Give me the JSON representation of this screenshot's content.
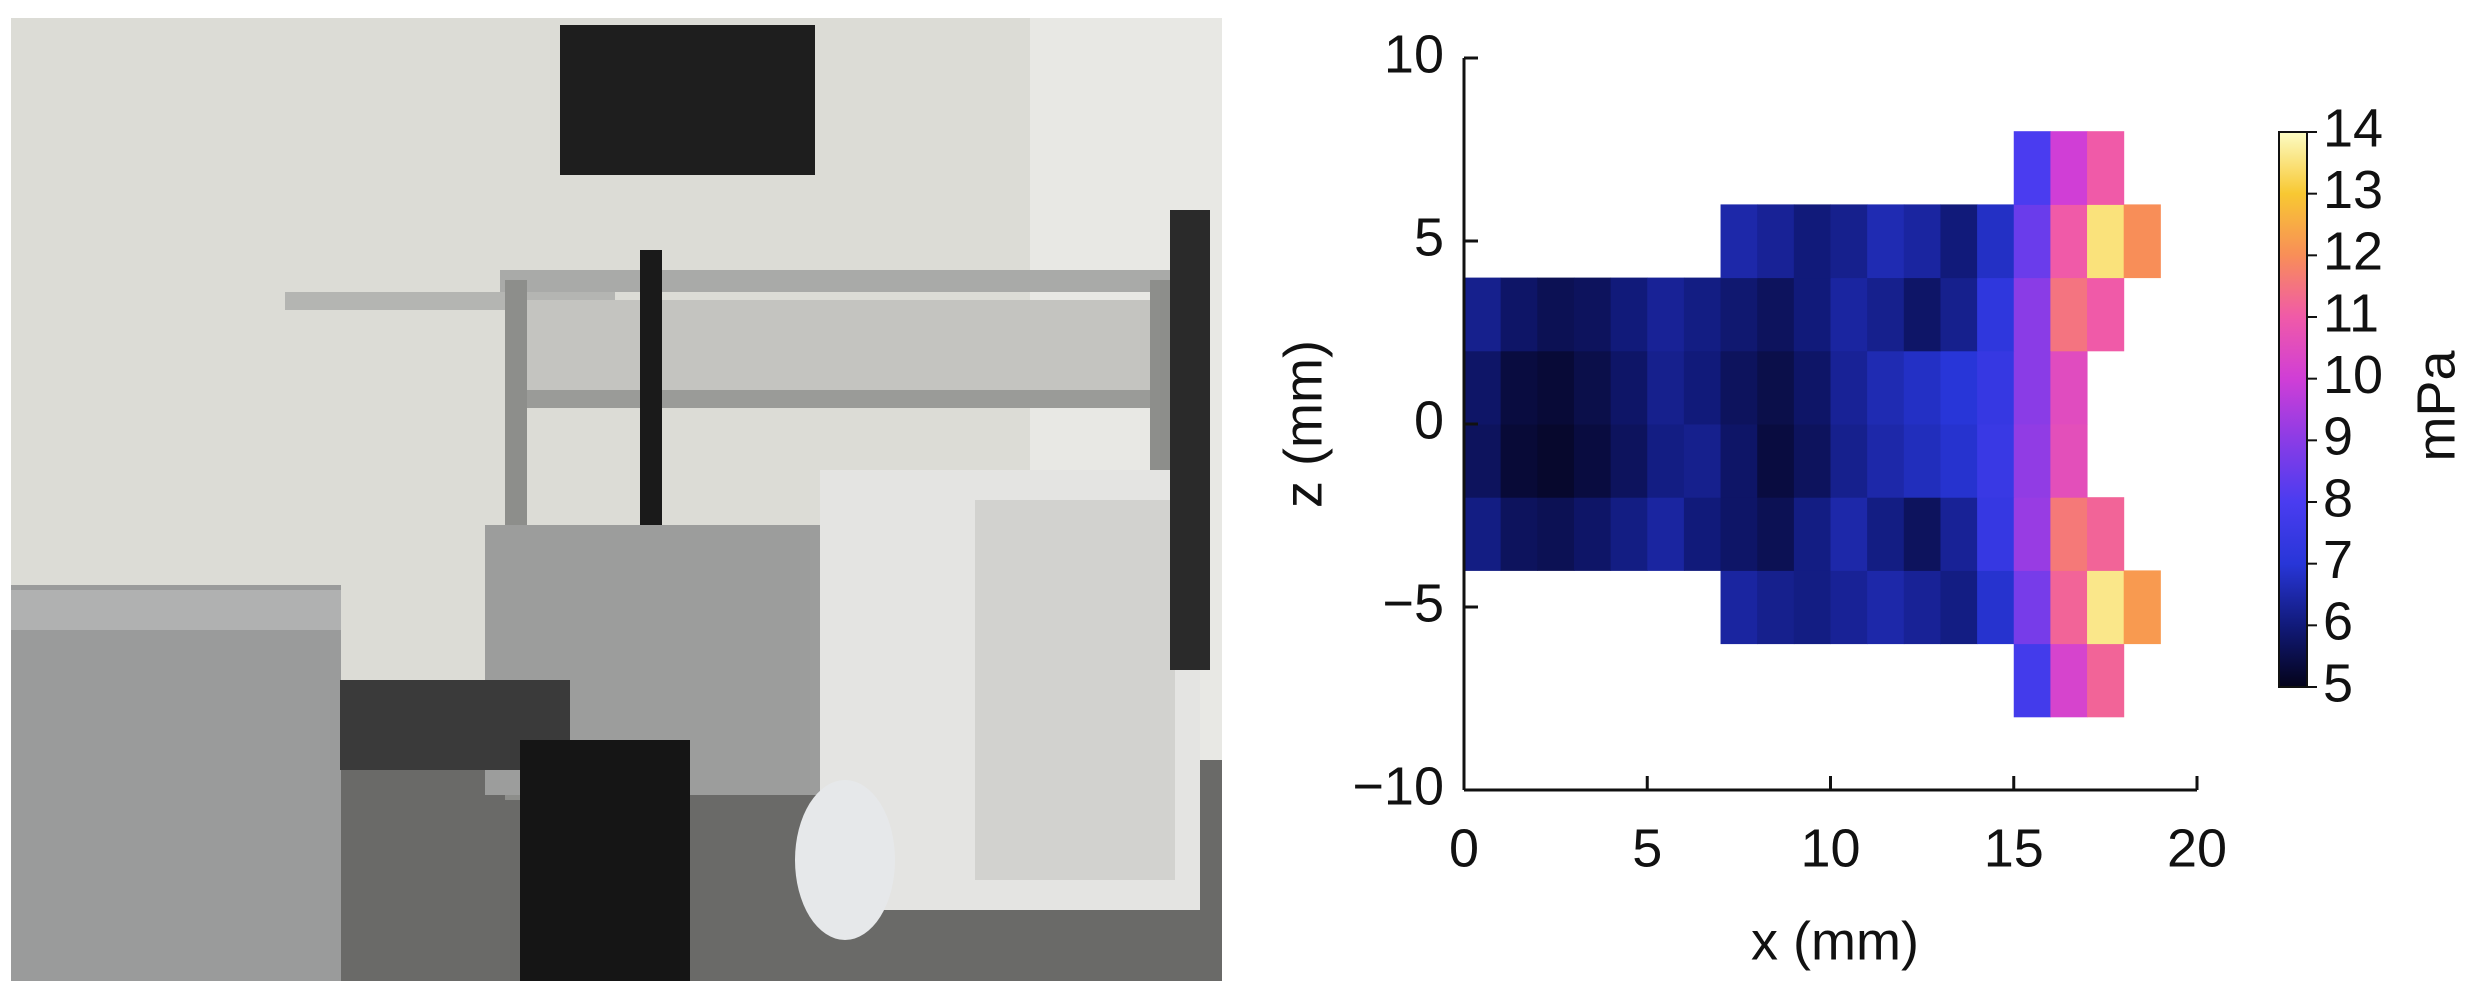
{
  "chart_data": {
    "type": "heatmap",
    "x_label": "x (mm)",
    "y_label": "z (mm)",
    "xlim": [
      0,
      20
    ],
    "ylim": [
      -10,
      10
    ],
    "xticks": [
      0,
      5,
      10,
      15,
      20
    ],
    "yticks": [
      {
        "value": -10,
        "label": "−10"
      },
      {
        "value": -5,
        "label": "−5"
      },
      0,
      5,
      10
    ],
    "x_edges": [
      0,
      1,
      2,
      3,
      4,
      5,
      6,
      7,
      8,
      9,
      10,
      11,
      12,
      13,
      14,
      15,
      16,
      17,
      18,
      19
    ],
    "z_edges": [
      -8,
      -6,
      -4,
      -2,
      0,
      2,
      4,
      6,
      8
    ],
    "values": [
      [
        null,
        null,
        null,
        null,
        null,
        null,
        null,
        null,
        null,
        null,
        null,
        null,
        null,
        null,
        null,
        7.8,
        10.2,
        11.2,
        null
      ],
      [
        null,
        null,
        null,
        null,
        null,
        null,
        null,
        6.4,
        6.2,
        6.1,
        6.3,
        6.5,
        6.3,
        6.1,
        6.9,
        8.7,
        11.2,
        13.6,
        12.2
      ],
      [
        6.1,
        5.7,
        5.6,
        5.8,
        6.1,
        6.4,
        6.0,
        5.8,
        5.6,
        6.1,
        6.5,
        6.1,
        5.7,
        6.3,
        7.4,
        9.2,
        11.6,
        11.2,
        null
      ],
      [
        5.7,
        5.3,
        5.2,
        5.4,
        5.7,
        6.1,
        6.2,
        5.8,
        5.4,
        5.7,
        6.2,
        6.5,
        6.7,
        6.9,
        7.5,
        9.1,
        10.6,
        null,
        null
      ],
      [
        5.8,
        5.4,
        5.3,
        5.5,
        5.8,
        6.2,
        6.0,
        5.7,
        5.5,
        5.8,
        6.3,
        6.6,
        6.8,
        7.0,
        7.4,
        9.0,
        10.5,
        null,
        null
      ],
      [
        6.2,
        5.8,
        5.6,
        5.7,
        6.0,
        6.3,
        6.1,
        5.9,
        5.7,
        6.0,
        6.4,
        6.2,
        5.8,
        6.2,
        7.2,
        9.0,
        11.5,
        11.0,
        null
      ],
      [
        null,
        null,
        null,
        null,
        null,
        null,
        null,
        6.5,
        6.3,
        6.0,
        6.2,
        6.6,
        6.4,
        6.0,
        6.8,
        8.5,
        11.0,
        13.5,
        12.0
      ],
      [
        null,
        null,
        null,
        null,
        null,
        null,
        null,
        null,
        null,
        null,
        null,
        null,
        null,
        null,
        null,
        8.0,
        10.0,
        11.0,
        null
      ]
    ],
    "colorbar": {
      "label": "mPa",
      "lim": [
        5,
        14
      ],
      "ticks": [
        5,
        6,
        7,
        8,
        9,
        10,
        11,
        12,
        13,
        14
      ]
    },
    "colormap": [
      "#04031a",
      "#111a7a",
      "#2836d8",
      "#4a3cf0",
      "#8a3ce6",
      "#d03ed6",
      "#f05aa8",
      "#f88e58",
      "#f8c832",
      "#fcfcc4"
    ]
  }
}
